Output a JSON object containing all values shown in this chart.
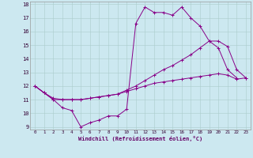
{
  "xlabel": "Windchill (Refroidissement éolien,°C)",
  "bg_color": "#cce8f0",
  "line_color": "#880088",
  "grid_color": "#aacccc",
  "xlim": [
    -0.5,
    23.5
  ],
  "ylim": [
    8.8,
    18.2
  ],
  "yticks": [
    9,
    10,
    11,
    12,
    13,
    14,
    15,
    16,
    17,
    18
  ],
  "xticks": [
    0,
    1,
    2,
    3,
    4,
    5,
    6,
    7,
    8,
    9,
    10,
    11,
    12,
    13,
    14,
    15,
    16,
    17,
    18,
    19,
    20,
    21,
    22,
    23
  ],
  "series": [
    {
      "x": [
        0,
        1,
        2,
        3,
        4,
        5,
        6,
        7,
        8,
        9,
        10,
        11,
        12,
        13,
        14,
        15,
        16,
        17,
        18,
        19,
        20,
        21,
        22
      ],
      "y": [
        12.0,
        11.5,
        11.0,
        10.4,
        10.2,
        9.0,
        9.3,
        9.5,
        9.8,
        9.8,
        10.3,
        16.6,
        17.8,
        17.4,
        17.4,
        17.2,
        17.8,
        17.0,
        16.4,
        15.3,
        14.8,
        13.2,
        12.6
      ]
    },
    {
      "x": [
        0,
        1,
        2,
        3,
        4,
        5,
        6,
        7,
        8,
        9,
        10,
        11,
        12,
        13,
        14,
        15,
        16,
        17,
        18,
        19,
        20,
        21,
        22,
        23
      ],
      "y": [
        12.0,
        11.5,
        11.1,
        11.0,
        11.0,
        11.0,
        11.1,
        11.2,
        11.3,
        11.4,
        11.7,
        12.0,
        12.4,
        12.8,
        13.2,
        13.5,
        13.9,
        14.3,
        14.8,
        15.3,
        15.3,
        14.9,
        13.2,
        12.6
      ]
    },
    {
      "x": [
        0,
        1,
        2,
        3,
        4,
        5,
        6,
        7,
        8,
        9,
        10,
        11,
        12,
        13,
        14,
        15,
        16,
        17,
        18,
        19,
        20,
        21,
        22,
        23
      ],
      "y": [
        12.0,
        11.5,
        11.0,
        11.0,
        11.0,
        11.0,
        11.1,
        11.2,
        11.3,
        11.4,
        11.6,
        11.8,
        12.0,
        12.2,
        12.3,
        12.4,
        12.5,
        12.6,
        12.7,
        12.8,
        12.9,
        12.8,
        12.5,
        12.6
      ]
    }
  ]
}
